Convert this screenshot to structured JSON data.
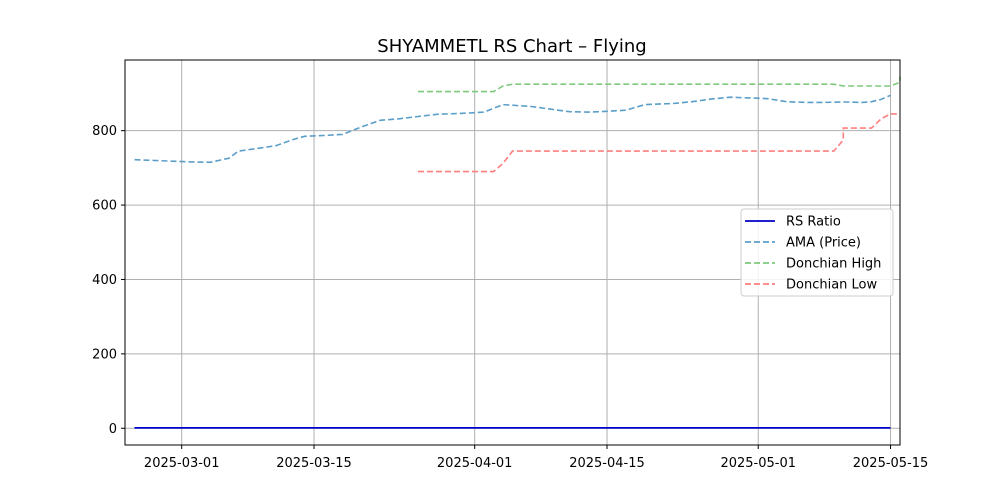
{
  "chart_data": {
    "type": "line",
    "title": "SHYAMMETL RS Chart – Flying",
    "xlabel": "",
    "ylabel": "",
    "x_type": "date",
    "xlim": [
      "2025-02-23",
      "2025-05-16"
    ],
    "ylim": [
      -45,
      990
    ],
    "x_ticks": [
      "2025-03-01",
      "2025-03-15",
      "2025-04-01",
      "2025-04-15",
      "2025-05-01",
      "2025-05-15"
    ],
    "x_tick_labels": [
      "2025-03-01",
      "2025-03-15",
      "2025-04-01",
      "2025-04-15",
      "2025-05-01",
      "2025-05-15"
    ],
    "y_ticks": [
      0,
      200,
      400,
      600,
      800
    ],
    "y_tick_labels": [
      "0",
      "200",
      "400",
      "600",
      "800"
    ],
    "grid": true,
    "legend_position": "center-right",
    "series": [
      {
        "name": "RS Ratio",
        "style": "solid",
        "color": "#0000cd",
        "points": [
          [
            "2025-02-24",
            1
          ],
          [
            "2025-05-15",
            1
          ]
        ]
      },
      {
        "name": "AMA (Price)",
        "style": "dashed",
        "color": "#5b9ec9",
        "points": [
          [
            "2025-02-24",
            722
          ],
          [
            "2025-02-26",
            720
          ],
          [
            "2025-02-28",
            718
          ],
          [
            "2025-03-02",
            716
          ],
          [
            "2025-03-04",
            715
          ],
          [
            "2025-03-06",
            726
          ],
          [
            "2025-03-07",
            745
          ],
          [
            "2025-03-09",
            752
          ],
          [
            "2025-03-11",
            760
          ],
          [
            "2025-03-13",
            778
          ],
          [
            "2025-03-14",
            785
          ],
          [
            "2025-03-16",
            787
          ],
          [
            "2025-03-18",
            790
          ],
          [
            "2025-03-20",
            810
          ],
          [
            "2025-03-22",
            828
          ],
          [
            "2025-03-24",
            832
          ],
          [
            "2025-03-26",
            838
          ],
          [
            "2025-03-28",
            844
          ],
          [
            "2025-03-31",
            847
          ],
          [
            "2025-04-02",
            850
          ],
          [
            "2025-04-04",
            870
          ],
          [
            "2025-04-07",
            865
          ],
          [
            "2025-04-09",
            858
          ],
          [
            "2025-04-11",
            851
          ],
          [
            "2025-04-13",
            850
          ],
          [
            "2025-04-15",
            852
          ],
          [
            "2025-04-17",
            855
          ],
          [
            "2025-04-19",
            870
          ],
          [
            "2025-04-22",
            873
          ],
          [
            "2025-04-24",
            878
          ],
          [
            "2025-04-26",
            885
          ],
          [
            "2025-04-28",
            890
          ],
          [
            "2025-04-30",
            888
          ],
          [
            "2025-05-02",
            886
          ],
          [
            "2025-05-04",
            878
          ],
          [
            "2025-05-06",
            876
          ],
          [
            "2025-05-08",
            876
          ],
          [
            "2025-05-10",
            877
          ],
          [
            "2025-05-12",
            876
          ],
          [
            "2025-05-13",
            878
          ],
          [
            "2025-05-14",
            884
          ],
          [
            "2025-05-15",
            895
          ]
        ]
      },
      {
        "name": "Donchian High",
        "style": "dashed",
        "color": "#7fc97f",
        "points": [
          [
            "2025-03-26",
            905
          ],
          [
            "2025-04-03",
            905
          ],
          [
            "2025-04-04",
            920
          ],
          [
            "2025-04-05",
            925
          ],
          [
            "2025-05-06",
            925
          ],
          [
            "2025-05-09",
            925
          ],
          [
            "2025-05-10",
            920
          ],
          [
            "2025-05-15",
            920
          ],
          [
            "2025-05-16",
            930
          ],
          [
            "2025-05-16",
            945
          ]
        ]
      },
      {
        "name": "Donchian Low",
        "style": "dashed",
        "color": "#ff7f7f",
        "points": [
          [
            "2025-03-26",
            690
          ],
          [
            "2025-04-02",
            690
          ],
          [
            "2025-04-03",
            690
          ],
          [
            "2025-04-04",
            712
          ],
          [
            "2025-04-05",
            745
          ],
          [
            "2025-05-09",
            745
          ],
          [
            "2025-05-10",
            775
          ],
          [
            "2025-05-10",
            807
          ],
          [
            "2025-05-13",
            807
          ],
          [
            "2025-05-14",
            832
          ],
          [
            "2025-05-15",
            845
          ],
          [
            "2025-05-16",
            845
          ]
        ]
      }
    ]
  }
}
